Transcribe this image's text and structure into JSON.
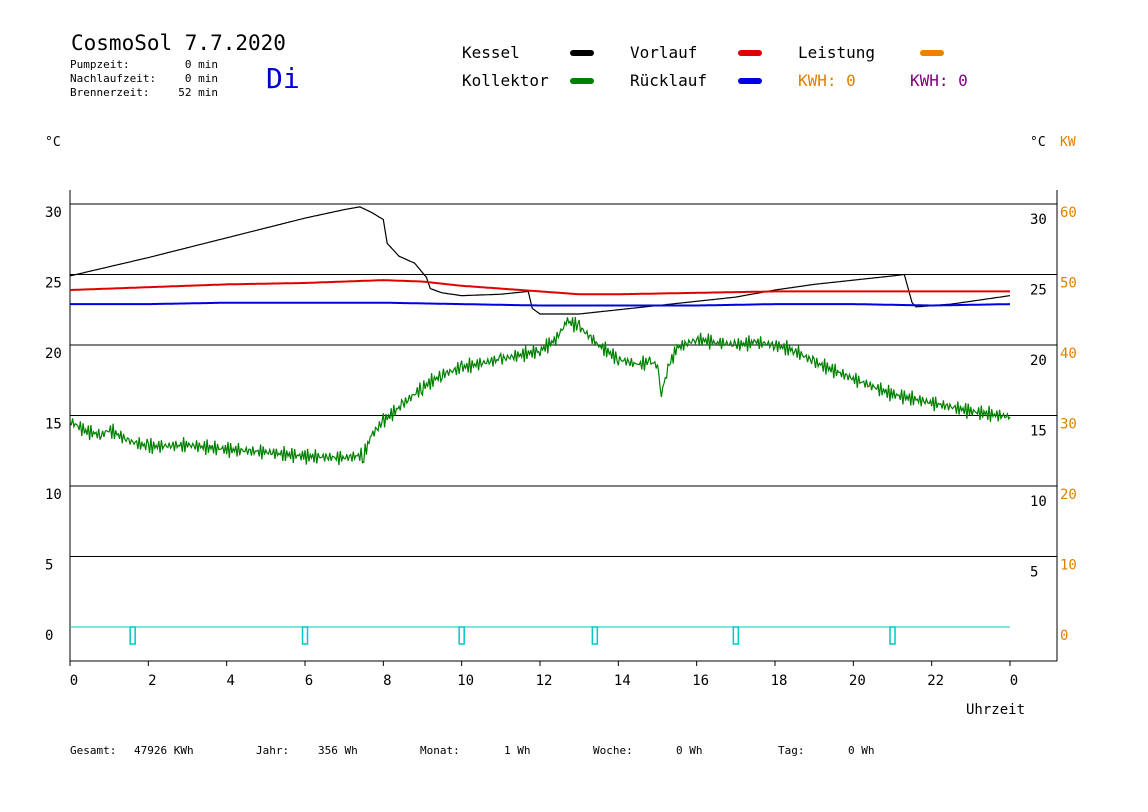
{
  "header": {
    "title": "CosmoSol 7.7.2020",
    "weekday": "Di",
    "stats": [
      {
        "label": "Pumpzeit:",
        "value": "0 min"
      },
      {
        "label": "Nachlaufzeit:",
        "value": "0 min"
      },
      {
        "label": "Brennerzeit:",
        "value": "52 min"
      }
    ]
  },
  "legend": {
    "items": [
      {
        "label": "Kessel",
        "color": "#000000"
      },
      {
        "label": "Vorlauf",
        "color": "#e00000"
      },
      {
        "label": "Leistung",
        "color": "#f08000"
      },
      {
        "label": "Kollektor",
        "color": "#008000"
      },
      {
        "label": "Rücklauf",
        "color": "#0000e0"
      }
    ],
    "kwh_left": {
      "text": "KWH: 0",
      "color": "#e08000"
    },
    "kwh_right": {
      "text": "KWH: 0",
      "color": "#800080"
    }
  },
  "axes": {
    "left_unit": "°C",
    "right_unit": "°C",
    "right_power_unit": "KW",
    "xlabel": "Uhrzeit"
  },
  "footer": [
    {
      "label": "Gesamt:",
      "value": "47926 KWh"
    },
    {
      "label": "Jahr:",
      "value": "356 Wh"
    },
    {
      "label": "Monat:",
      "value": "1 Wh"
    },
    {
      "label": "Woche:",
      "value": "0 Wh"
    },
    {
      "label": "Tag:",
      "value": "0 Wh"
    }
  ],
  "chart_data": {
    "type": "line",
    "xlabel": "Uhrzeit",
    "ylabel": "°C",
    "x_ticks": [
      "0",
      "2",
      "4",
      "6",
      "8",
      "10",
      "12",
      "14",
      "16",
      "18",
      "20",
      "22",
      "0"
    ],
    "x_range": [
      0,
      24
    ],
    "y_range": [
      -1.5,
      30
    ],
    "y_ticks_left": [
      0,
      5,
      10,
      15,
      20,
      25,
      30
    ],
    "y_ticks_right_temp": [
      5,
      10,
      15,
      20,
      25,
      30
    ],
    "y_ticks_right_power": [
      0,
      10,
      20,
      30,
      40,
      50,
      60
    ],
    "grid": "horizontal",
    "series": [
      {
        "name": "Kessel",
        "color": "#000000",
        "points": [
          [
            0,
            24.9
          ],
          [
            2,
            26.2
          ],
          [
            4,
            27.6
          ],
          [
            6,
            29.0
          ],
          [
            7.0,
            29.6
          ],
          [
            7.4,
            29.8
          ],
          [
            7.7,
            29.4
          ],
          [
            8.0,
            28.9
          ],
          [
            8.1,
            27.2
          ],
          [
            8.4,
            26.3
          ],
          [
            8.8,
            25.8
          ],
          [
            9.1,
            24.8
          ],
          [
            9.2,
            24.0
          ],
          [
            9.5,
            23.7
          ],
          [
            10.0,
            23.5
          ],
          [
            11.0,
            23.6
          ],
          [
            11.7,
            23.8
          ],
          [
            11.8,
            22.6
          ],
          [
            12.0,
            22.2
          ],
          [
            13.0,
            22.2
          ],
          [
            14.0,
            22.5
          ],
          [
            15.0,
            22.8
          ],
          [
            16.0,
            23.1
          ],
          [
            17.0,
            23.4
          ],
          [
            18.0,
            23.9
          ],
          [
            19.0,
            24.3
          ],
          [
            20.0,
            24.6
          ],
          [
            21.0,
            24.9
          ],
          [
            21.3,
            25.0
          ],
          [
            21.5,
            23.0
          ],
          [
            21.6,
            22.7
          ],
          [
            22.5,
            22.9
          ],
          [
            23.5,
            23.3
          ],
          [
            24.0,
            23.5
          ]
        ]
      },
      {
        "name": "Vorlauf",
        "color": "#e00000",
        "points": [
          [
            0,
            23.9
          ],
          [
            2,
            24.1
          ],
          [
            4,
            24.3
          ],
          [
            6,
            24.4
          ],
          [
            8,
            24.6
          ],
          [
            9,
            24.5
          ],
          [
            10,
            24.2
          ],
          [
            11,
            24.0
          ],
          [
            12,
            23.8
          ],
          [
            13,
            23.6
          ],
          [
            14,
            23.6
          ],
          [
            16,
            23.7
          ],
          [
            18,
            23.8
          ],
          [
            20,
            23.8
          ],
          [
            21,
            23.8
          ],
          [
            22,
            23.8
          ],
          [
            24,
            23.8
          ]
        ]
      },
      {
        "name": "Rücklauf",
        "color": "#0000e0",
        "points": [
          [
            0,
            22.9
          ],
          [
            2,
            22.9
          ],
          [
            4,
            23.0
          ],
          [
            6,
            23.0
          ],
          [
            8,
            23.0
          ],
          [
            10,
            22.9
          ],
          [
            12,
            22.8
          ],
          [
            14,
            22.8
          ],
          [
            16,
            22.8
          ],
          [
            18,
            22.9
          ],
          [
            20,
            22.9
          ],
          [
            22,
            22.8
          ],
          [
            24,
            22.9
          ]
        ]
      },
      {
        "name": "Kollektor",
        "color": "#008000",
        "points": [
          [
            0,
            14.6
          ],
          [
            0.4,
            13.9
          ],
          [
            0.8,
            13.6
          ],
          [
            1.0,
            14.0
          ],
          [
            1.5,
            13.2
          ],
          [
            2.0,
            12.8
          ],
          [
            3.0,
            12.9
          ],
          [
            4.0,
            12.6
          ],
          [
            5.0,
            12.4
          ],
          [
            6.0,
            12.1
          ],
          [
            7.0,
            12.0
          ],
          [
            7.5,
            12.2
          ],
          [
            7.7,
            13.6
          ],
          [
            8.0,
            14.6
          ],
          [
            8.5,
            15.8
          ],
          [
            9.0,
            17.0
          ],
          [
            9.5,
            17.9
          ],
          [
            10.0,
            18.4
          ],
          [
            11.0,
            19.0
          ],
          [
            12.0,
            19.6
          ],
          [
            12.4,
            20.4
          ],
          [
            12.7,
            21.7
          ],
          [
            13.0,
            21.3
          ],
          [
            13.5,
            20.0
          ],
          [
            14.0,
            19.0
          ],
          [
            14.5,
            18.6
          ],
          [
            14.8,
            18.8
          ],
          [
            15.0,
            18.6
          ],
          [
            15.1,
            16.6
          ],
          [
            15.3,
            18.6
          ],
          [
            15.5,
            19.8
          ],
          [
            16.0,
            20.4
          ],
          [
            16.5,
            20.2
          ],
          [
            17.0,
            20.0
          ],
          [
            17.5,
            20.2
          ],
          [
            18.0,
            20.0
          ],
          [
            18.5,
            19.6
          ],
          [
            19.0,
            18.8
          ],
          [
            20.0,
            17.6
          ],
          [
            21.0,
            16.5
          ],
          [
            22.0,
            15.9
          ],
          [
            23.0,
            15.3
          ],
          [
            24.0,
            14.9
          ]
        ]
      }
    ],
    "power_markers_hours": [
      1.6,
      6.0,
      10.0,
      13.4,
      17.0,
      21.0
    ],
    "power_marker_color": "#00c8c8"
  }
}
